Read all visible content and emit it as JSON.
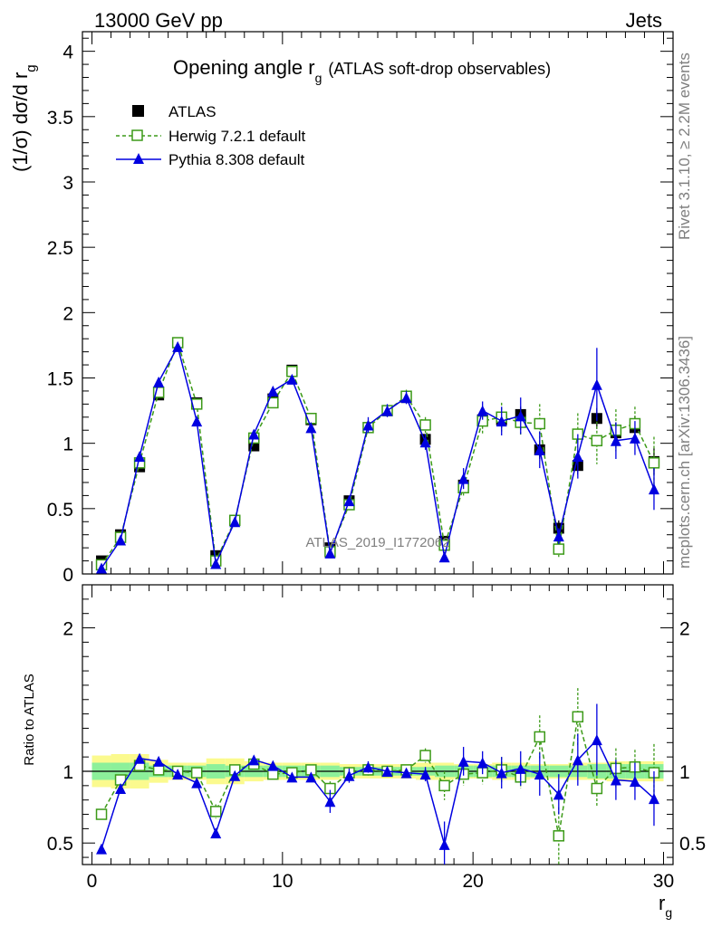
{
  "header": {
    "left": "13000 GeV pp",
    "right": "Jets"
  },
  "side": {
    "rivet": "Rivet 3.1.10, ≥ 2.2M events",
    "mcplots": "mcplots.cern.ch [arXiv:1306.3436]"
  },
  "colors": {
    "atlas": "#000000",
    "herwig": "#3c9a18",
    "pythia": "#0000e0",
    "band_inner": "#8cf09a",
    "band_outer": "#fbfa8e"
  },
  "chart_data": [
    {
      "type": "scatter",
      "name": "main",
      "title_main": "Opening angle r",
      "title_sub": "g",
      "title_suffix": "(ATLAS soft-drop observables)",
      "ylabel": "(1/σ) dσ/d r",
      "ylabel_sub": "g",
      "watermark": "ATLAS_2019_I1772062",
      "xlim": [
        -0.5,
        30.5
      ],
      "ylim": [
        0,
        4.15
      ],
      "yticks": [
        "0",
        "0.5",
        "1",
        "1.5",
        "2",
        "2.5",
        "3",
        "3.5",
        "4"
      ],
      "legend": [
        "ATLAS",
        "Herwig 7.2.1 default",
        "Pythia 8.308 default"
      ],
      "x": [
        0.5,
        1.5,
        2.5,
        3.5,
        4.5,
        5.5,
        6.5,
        7.5,
        8.5,
        9.5,
        10.5,
        11.5,
        12.5,
        13.5,
        14.5,
        15.5,
        16.5,
        17.5,
        18.5,
        19.5,
        20.5,
        21.5,
        22.5,
        23.5,
        24.5,
        25.5,
        26.5,
        27.5,
        28.5,
        29.5
      ],
      "series": [
        {
          "name": "ATLAS",
          "values": [
            0.1,
            0.3,
            0.82,
            1.37,
            1.77,
            1.31,
            0.14,
            0.41,
            0.98,
            1.34,
            1.56,
            1.18,
            0.2,
            0.56,
            1.12,
            1.25,
            1.35,
            1.03,
            0.25,
            0.68,
            1.18,
            1.18,
            1.22,
            0.95,
            0.35,
            0.83,
            1.19,
            1.08,
            1.12,
            0.86
          ],
          "errors": [
            0.01,
            0.01,
            0.02,
            0.02,
            0.02,
            0.02,
            0.01,
            0.01,
            0.02,
            0.02,
            0.02,
            0.02,
            0.02,
            0.02,
            0.03,
            0.03,
            0.03,
            0.03,
            0.03,
            0.04,
            0.05,
            0.06,
            0.06,
            0.07,
            0.06,
            0.07,
            0.08,
            0.08,
            0.09,
            0.1
          ]
        },
        {
          "name": "Herwig 7.2.1 default",
          "values": [
            0.07,
            0.28,
            0.85,
            1.39,
            1.77,
            1.3,
            0.1,
            0.41,
            1.04,
            1.31,
            1.55,
            1.19,
            0.17,
            0.53,
            1.12,
            1.25,
            1.36,
            1.14,
            0.22,
            0.66,
            1.17,
            1.2,
            1.16,
            1.15,
            0.19,
            1.07,
            1.02,
            1.1,
            1.15,
            0.85
          ],
          "errors": [
            0.01,
            0.01,
            0.02,
            0.02,
            0.02,
            0.02,
            0.01,
            0.02,
            0.03,
            0.03,
            0.03,
            0.03,
            0.02,
            0.03,
            0.04,
            0.04,
            0.05,
            0.06,
            0.04,
            0.06,
            0.1,
            0.11,
            0.1,
            0.15,
            0.06,
            0.16,
            0.18,
            0.16,
            0.13,
            0.2
          ]
        },
        {
          "name": "Pythia 8.308 default",
          "values": [
            0.045,
            0.26,
            0.9,
            1.47,
            1.74,
            1.17,
            0.08,
            0.4,
            1.07,
            1.4,
            1.49,
            1.12,
            0.16,
            0.56,
            1.14,
            1.25,
            1.35,
            1.01,
            0.13,
            0.73,
            1.25,
            1.17,
            1.21,
            0.95,
            0.29,
            0.9,
            1.45,
            1.02,
            1.04,
            0.65
          ],
          "errors": [
            0.01,
            0.01,
            0.02,
            0.02,
            0.02,
            0.03,
            0.01,
            0.02,
            0.03,
            0.03,
            0.03,
            0.04,
            0.02,
            0.04,
            0.06,
            0.05,
            0.05,
            0.06,
            0.03,
            0.08,
            0.07,
            0.11,
            0.14,
            0.14,
            0.06,
            0.17,
            0.28,
            0.14,
            0.13,
            0.16
          ]
        }
      ]
    },
    {
      "type": "scatter",
      "name": "ratio",
      "ylabel": "Ratio to ATLAS",
      "xlabel": "r",
      "xlabel_sub": "g",
      "xlim": [
        -0.5,
        30.5
      ],
      "ylim": [
        0.35,
        2.3
      ],
      "yticks": [
        {
          "v": 0.5,
          "label": "0.5"
        },
        {
          "v": 1,
          "label": "1"
        },
        {
          "v": 2,
          "label": "2"
        }
      ],
      "xticks": [
        {
          "v": 0,
          "label": "0"
        },
        {
          "v": 10,
          "label": "10"
        },
        {
          "v": 20,
          "label": "20"
        },
        {
          "v": 30,
          "label": "30"
        }
      ],
      "band_inner": [
        0.06,
        0.06,
        0.06,
        0.04,
        0.04,
        0.04,
        0.05,
        0.04,
        0.04,
        0.04,
        0.04,
        0.04,
        0.04,
        0.03,
        0.03,
        0.03,
        0.03,
        0.03,
        0.04,
        0.04,
        0.04,
        0.04,
        0.04,
        0.04,
        0.04,
        0.04,
        0.05,
        0.05,
        0.05,
        0.05
      ],
      "band_outer": [
        0.11,
        0.12,
        0.12,
        0.08,
        0.06,
        0.06,
        0.09,
        0.09,
        0.07,
        0.06,
        0.06,
        0.06,
        0.06,
        0.05,
        0.05,
        0.05,
        0.05,
        0.06,
        0.06,
        0.05,
        0.05,
        0.06,
        0.06,
        0.05,
        0.05,
        0.06,
        0.06,
        0.07,
        0.07,
        0.07
      ],
      "series": [
        {
          "name": "Herwig 7.2.1 default",
          "values": [
            0.7,
            0.94,
            1.04,
            1.01,
            1.0,
            0.99,
            0.72,
            1.01,
            1.05,
            0.98,
            0.99,
            1.01,
            0.88,
            0.99,
            1.01,
            1.0,
            1.01,
            1.11,
            0.9,
            0.98,
            0.99,
            1.01,
            0.96,
            1.24,
            0.55,
            1.38,
            0.88,
            1.02,
            1.03,
            0.99
          ],
          "errors": [
            0.02,
            0.02,
            0.02,
            0.02,
            0.02,
            0.02,
            0.05,
            0.03,
            0.03,
            0.02,
            0.02,
            0.03,
            0.05,
            0.04,
            0.04,
            0.03,
            0.03,
            0.05,
            0.1,
            0.08,
            0.08,
            0.09,
            0.08,
            0.15,
            0.2,
            0.2,
            0.12,
            0.14,
            0.12,
            0.2
          ]
        },
        {
          "name": "Pythia 8.308 default",
          "values": [
            0.46,
            0.88,
            1.09,
            1.07,
            0.98,
            0.92,
            0.57,
            0.97,
            1.08,
            1.04,
            0.96,
            0.96,
            0.79,
            0.97,
            1.03,
            1.0,
            0.99,
            0.98,
            0.49,
            1.07,
            1.06,
            0.99,
            1.02,
            0.98,
            0.84,
            1.08,
            1.22,
            0.94,
            0.93,
            0.81
          ],
          "errors": [
            0.02,
            0.02,
            0.02,
            0.02,
            0.02,
            0.03,
            0.03,
            0.03,
            0.03,
            0.02,
            0.02,
            0.03,
            0.08,
            0.05,
            0.04,
            0.03,
            0.03,
            0.05,
            0.16,
            0.1,
            0.08,
            0.11,
            0.12,
            0.15,
            0.14,
            0.18,
            0.25,
            0.14,
            0.13,
            0.19
          ]
        }
      ]
    }
  ]
}
